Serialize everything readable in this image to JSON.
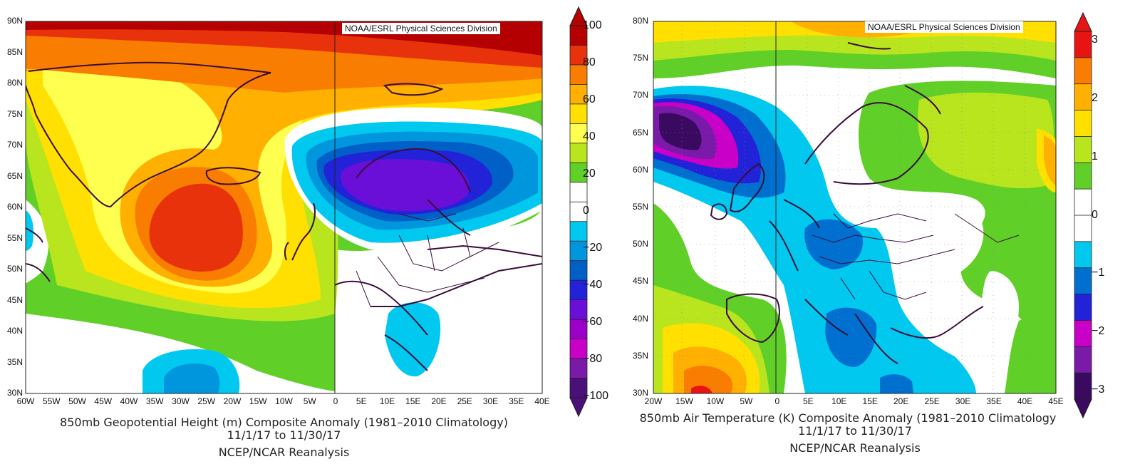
{
  "panels": [
    {
      "id": "height",
      "credit": "NOAA/ESRL Physical Sciences Division",
      "lat_ticks": [
        "90N",
        "85N",
        "80N",
        "75N",
        "70N",
        "65N",
        "60N",
        "55N",
        "50N",
        "45N",
        "40N",
        "35N",
        "30N"
      ],
      "lon_ticks": [
        "60W",
        "55W",
        "50W",
        "45W",
        "40W",
        "35W",
        "30W",
        "25W",
        "20W",
        "15W",
        "10W",
        "5W",
        "0",
        "5E",
        "10E",
        "15E",
        "20E",
        "25E",
        "30E",
        "35E",
        "40E"
      ],
      "caption_line1": "850mb Geopotential Height (m) Composite Anomaly (1981–2010 Climatology)",
      "caption_line2": "11/1/17   to 11/30/17",
      "caption_line3": "NCEP/NCAR Reanalysis",
      "colorbar_labels": [
        "100",
        "80",
        "60",
        "40",
        "20",
        "0",
        "−20",
        "−40",
        "−60",
        "−80",
        "−100"
      ],
      "colorbar_colors": [
        "#b50000",
        "#e8320c",
        "#f97d00",
        "#ffb000",
        "#ffe000",
        "#ffff50",
        "#b9e51e",
        "#60cf28",
        "#ffffff",
        "#ffffff",
        "#00c8ee",
        "#0096dd",
        "#0060c8",
        "#2222d8",
        "#6a0fd8",
        "#9a00c8",
        "#c800c8",
        "#7a1aa8",
        "#4a0f78"
      ]
    },
    {
      "id": "temperature",
      "credit": "NOAA/ESRL Physical Sciences Division",
      "lat_ticks": [
        "80N",
        "75N",
        "70N",
        "65N",
        "60N",
        "55N",
        "50N",
        "45N",
        "40N",
        "35N",
        "30N"
      ],
      "lon_ticks": [
        "20W",
        "15W",
        "10W",
        "5W",
        "0",
        "5E",
        "10E",
        "15E",
        "20E",
        "25E",
        "30E",
        "35E",
        "40E",
        "45E"
      ],
      "caption_line1": "850mb Air Temperature (K) Composite Anomaly (1981–2010 Climatology",
      "caption_line2": "11/1/17   to 11/30/17",
      "caption_line3": "NCEP/NCAR Reanalysis",
      "colorbar_labels": [
        "3",
        "2",
        "1",
        "0",
        "−1",
        "−2",
        "−3"
      ],
      "colorbar_colors": [
        "#e81414",
        "#f97d00",
        "#ffb000",
        "#ffe000",
        "#b9e51e",
        "#60cf28",
        "#ffffff",
        "#ffffff",
        "#00c8ee",
        "#0070d0",
        "#2222d8",
        "#c800c8",
        "#7a1aa8",
        "#3a0a60"
      ]
    }
  ]
}
